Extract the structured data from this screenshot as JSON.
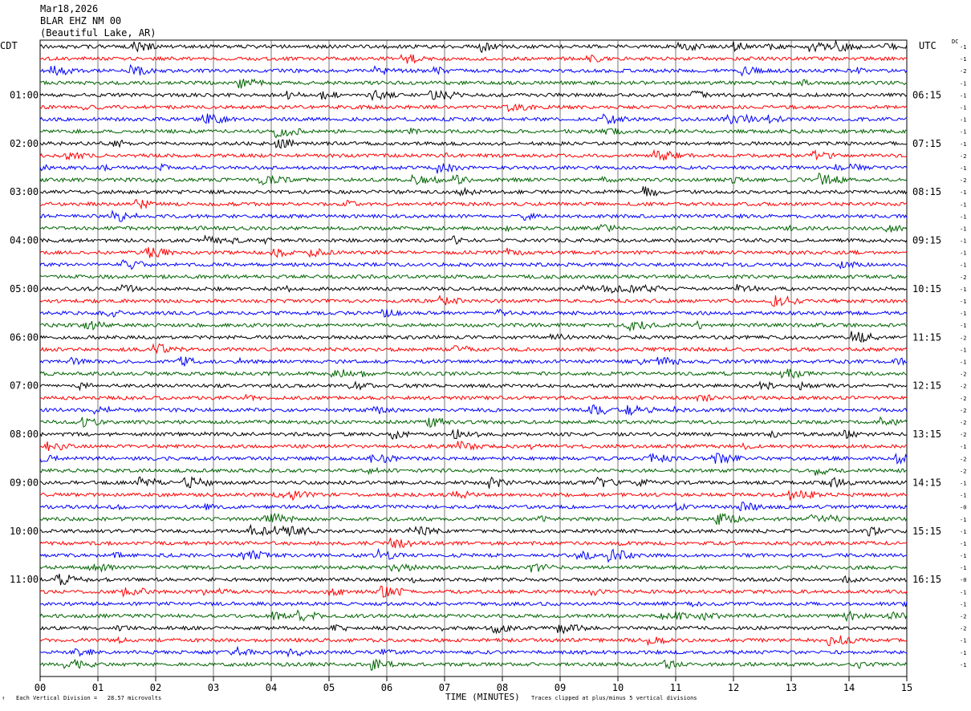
{
  "header": {
    "date": "Mar18,2026",
    "station": "BLAR EHZ NM 00",
    "location": "(Beautiful Lake, AR)"
  },
  "left_tz": "CDT",
  "right_tz": "UTC",
  "dc_header": "DC",
  "footer": {
    "mark": "↑",
    "division": "Each Vertical Division =   28.57 microvolts",
    "clipping": "Traces clipped at plus/minus 5 vertical divisions"
  },
  "colors": {
    "trace_cycle": [
      "#000000",
      "#ff0000",
      "#0000ff",
      "#006400"
    ],
    "grid": "#000000"
  },
  "chart_data": {
    "type": "line",
    "xlabel": "TIME (MINUTES)",
    "x_ticks": [
      "00",
      "01",
      "02",
      "03",
      "04",
      "05",
      "06",
      "07",
      "08",
      "09",
      "10",
      "11",
      "12",
      "13",
      "14",
      "15"
    ],
    "xlim": [
      0,
      15
    ],
    "left_hour_labels": [
      "01:00",
      "02:00",
      "03:00",
      "04:00",
      "05:00",
      "06:00",
      "07:00",
      "08:00",
      "09:00",
      "10:00",
      "11:00"
    ],
    "right_hour_labels": [
      "06:15",
      "07:15",
      "08:15",
      "09:15",
      "10:15",
      "11:15",
      "12:15",
      "13:15",
      "14:15",
      "15:15",
      "16:15"
    ],
    "dc_offsets": [
      "-1",
      "-1",
      "-2",
      "-1",
      "-1",
      "-1",
      "-1",
      "-1",
      "-1",
      "-2",
      "-1",
      "-2",
      "-1",
      "-1",
      "-1",
      "-1",
      "-1",
      "-1",
      "-1",
      "-2",
      "-1",
      "-1",
      "-1",
      "-1",
      "-2",
      "-1",
      "-1",
      "-2",
      "-2",
      "-2",
      "-2",
      "-2",
      "-2",
      "-1",
      "-2",
      "-2",
      "-1",
      "-1",
      "-0",
      "-1",
      "-1",
      "-1",
      "-1",
      "-1",
      "-0",
      "-1",
      "-1",
      "-2",
      "-2",
      "-1",
      "-1",
      "-1"
    ],
    "rows_per_hour": 4,
    "minutes_per_row": 15,
    "grid": true
  }
}
